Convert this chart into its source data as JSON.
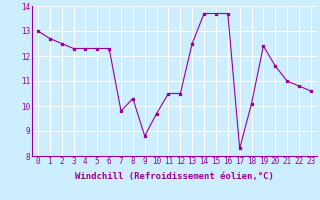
{
  "x": [
    0,
    1,
    2,
    3,
    4,
    5,
    6,
    7,
    8,
    9,
    10,
    11,
    12,
    13,
    14,
    15,
    16,
    17,
    18,
    19,
    20,
    21,
    22,
    23
  ],
  "y": [
    13.0,
    12.7,
    12.5,
    12.3,
    12.3,
    12.3,
    12.3,
    9.8,
    10.3,
    8.8,
    9.7,
    10.5,
    10.5,
    12.5,
    13.7,
    13.7,
    13.7,
    8.3,
    10.1,
    12.4,
    11.6,
    11.0,
    10.8,
    10.6
  ],
  "xlim": [
    -0.5,
    23.5
  ],
  "ylim": [
    8,
    14
  ],
  "yticks": [
    8,
    9,
    10,
    11,
    12,
    13,
    14
  ],
  "xticks": [
    0,
    1,
    2,
    3,
    4,
    5,
    6,
    7,
    8,
    9,
    10,
    11,
    12,
    13,
    14,
    15,
    16,
    17,
    18,
    19,
    20,
    21,
    22,
    23
  ],
  "xlabel": "Windchill (Refroidissement éolien,°C)",
  "line_color": "#990099",
  "marker": "s",
  "marker_size": 2,
  "bg_color": "#cceeff",
  "grid_color": "#ffffff",
  "tick_fontsize": 5.5,
  "label_fontsize": 6.5
}
